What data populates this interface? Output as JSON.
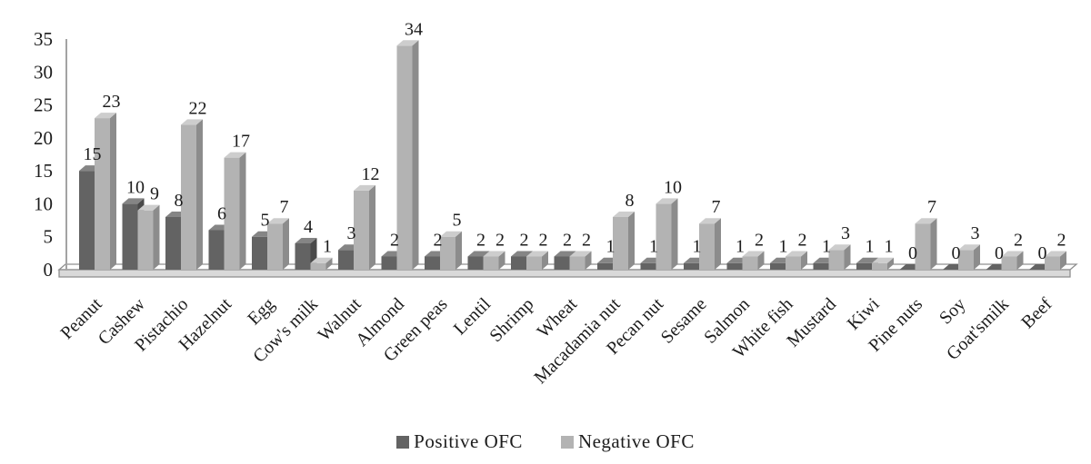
{
  "chart_data": {
    "type": "bar",
    "style": "3d-clustered-column",
    "title": "",
    "xlabel": "",
    "ylabel": "",
    "grid": false,
    "legend_position": "bottom",
    "bar_value_labels": true,
    "ylim": [
      0,
      35
    ],
    "yticks": [
      0,
      5,
      10,
      15,
      20,
      25,
      30,
      35
    ],
    "categories": [
      "Peanut",
      "Cashew",
      "Pistachio",
      "Hazelnut",
      "Egg",
      "Cow's milk",
      "Walnut",
      "Almond",
      "Green peas",
      "Lentil",
      "Shrimp",
      "Wheat",
      "Macadamia nut",
      "Pecan nut",
      "Sesame",
      "Salmon",
      "White fish",
      "Mustard",
      "Kiwi",
      "Pine nuts",
      "Soy",
      "Goat'smilk",
      "Beef"
    ],
    "series": [
      {
        "name": "Positive OFC",
        "values": [
          15,
          10,
          8,
          6,
          5,
          4,
          3,
          2,
          2,
          2,
          2,
          2,
          1,
          1,
          1,
          1,
          1,
          1,
          1,
          0,
          0,
          0,
          0
        ],
        "colors": {
          "front": "#636363",
          "top": "#858585",
          "side": "#4a4a4a"
        }
      },
      {
        "name": "Negative OFC",
        "values": [
          23,
          9,
          22,
          17,
          7,
          1,
          12,
          34,
          5,
          2,
          2,
          2,
          8,
          10,
          7,
          2,
          2,
          3,
          1,
          7,
          3,
          2,
          2
        ],
        "colors": {
          "front": "#b3b3b3",
          "top": "#cdcdcd",
          "side": "#8c8c8c"
        }
      }
    ],
    "colors": {
      "axis": "#a3a3a3",
      "floor_front": "#d9d9d9",
      "floor_top": "#ffffff",
      "floor_stroke": "#8f8f8f",
      "text": "#1c1c1c",
      "background": "#ffffff"
    }
  }
}
